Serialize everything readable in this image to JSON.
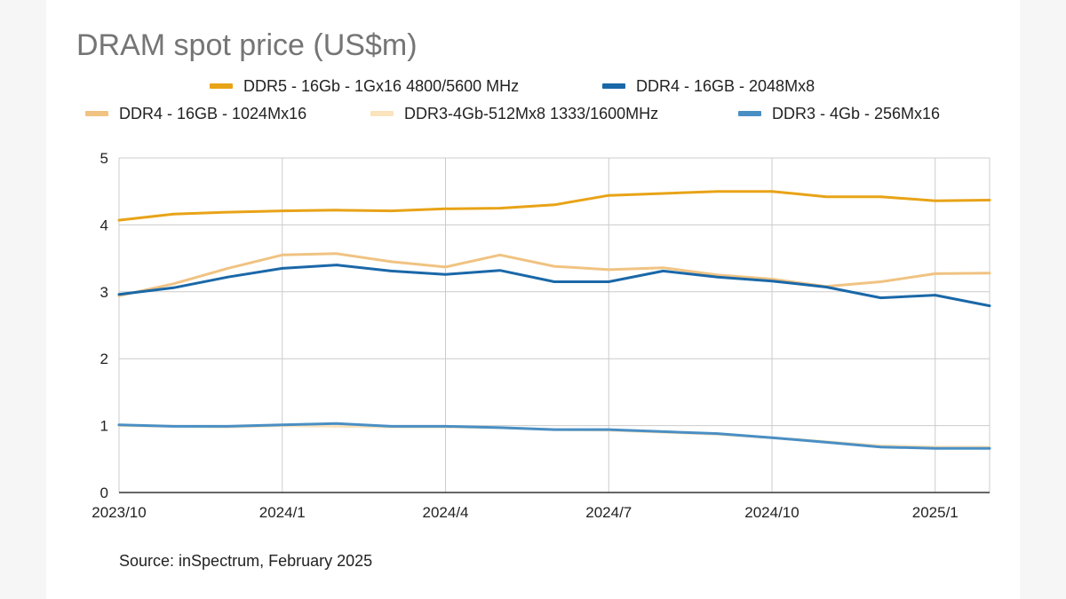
{
  "chart_data": {
    "type": "line",
    "title": "DRAM spot price (US$m)",
    "source": "Source: inSpectrum, February 2025",
    "x": [
      "2023/10",
      "2023/11",
      "2023/12",
      "2024/1",
      "2024/2",
      "2024/3",
      "2024/4",
      "2024/5",
      "2024/6",
      "2024/7",
      "2024/8",
      "2024/9",
      "2024/10",
      "2024/11",
      "2024/12",
      "2025/1",
      "2025/2"
    ],
    "x_tick_labels": [
      "2023/10",
      "2024/1",
      "2024/4",
      "2024/7",
      "2024/10",
      "2025/1"
    ],
    "y_tick_labels": [
      "0",
      "1",
      "2",
      "3",
      "4",
      "5"
    ],
    "ylim": [
      0,
      5
    ],
    "grid": true,
    "legend_position": "top",
    "series": [
      {
        "name": "DDR5 - 16Gb - 1Gx16 4800/5600 MHz",
        "color": "#e8a317",
        "values": [
          4.07,
          4.16,
          4.19,
          4.21,
          4.22,
          4.21,
          4.24,
          4.25,
          4.3,
          4.44,
          4.47,
          4.5,
          4.5,
          4.42,
          4.42,
          4.36,
          4.37
        ]
      },
      {
        "name": "DDR4 - 16GB - 2048Mx8",
        "color": "#1a68a8",
        "values": [
          2.96,
          3.06,
          3.22,
          3.35,
          3.4,
          3.31,
          3.26,
          3.32,
          3.15,
          3.15,
          3.31,
          3.22,
          3.16,
          3.07,
          2.91,
          2.95,
          2.79
        ]
      },
      {
        "name": "DDR4 - 16GB - 1024Mx16",
        "color": "#f0c382",
        "values": [
          2.94,
          3.12,
          3.35,
          3.55,
          3.57,
          3.45,
          3.37,
          3.55,
          3.38,
          3.33,
          3.36,
          3.25,
          3.19,
          3.08,
          3.15,
          3.27,
          3.28
        ]
      },
      {
        "name": "DDR3-4Gb-512Mx8 1333/1600MHz",
        "color": "#fae3bd",
        "values": [
          1.0,
          0.99,
          0.98,
          1.0,
          0.99,
          0.98,
          0.98,
          0.97,
          0.94,
          0.93,
          0.9,
          0.87,
          0.82,
          0.76,
          0.7,
          0.68,
          0.68
        ]
      },
      {
        "name": "DDR3 - 4Gb - 256Mx16",
        "color": "#4a8fc4",
        "values": [
          1.01,
          0.99,
          0.99,
          1.01,
          1.03,
          0.99,
          0.99,
          0.97,
          0.94,
          0.94,
          0.91,
          0.88,
          0.82,
          0.75,
          0.68,
          0.66,
          0.66
        ]
      }
    ]
  }
}
